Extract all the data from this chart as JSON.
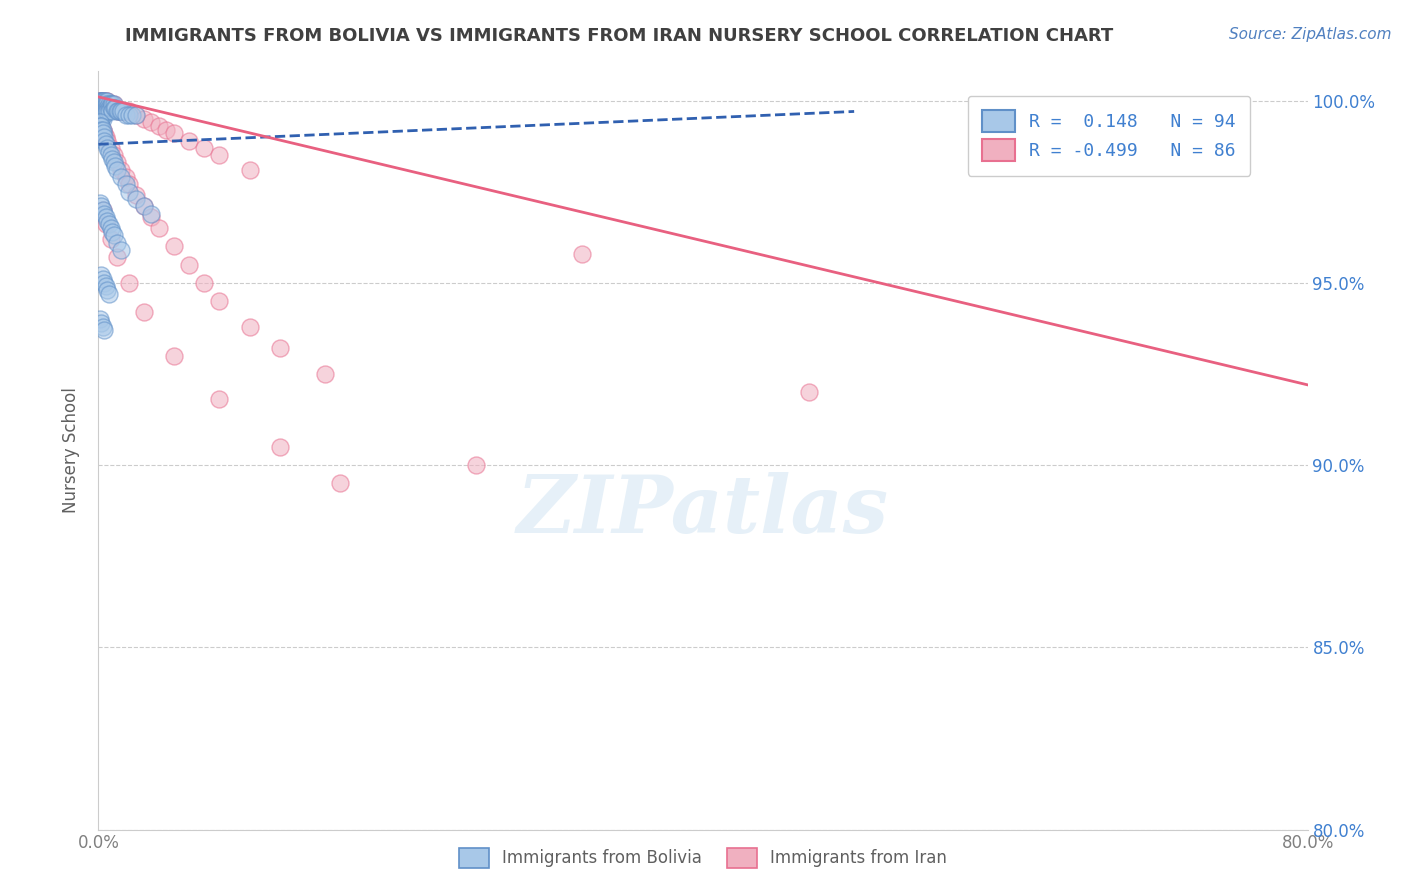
{
  "title": "IMMIGRANTS FROM BOLIVIA VS IMMIGRANTS FROM IRAN NURSERY SCHOOL CORRELATION CHART",
  "source": "Source: ZipAtlas.com",
  "ylabel": "Nursery School",
  "xmin": 0.0,
  "xmax": 0.8,
  "ymin": 0.8,
  "ymax": 1.008,
  "bolivia_R": 0.148,
  "bolivia_N": 94,
  "iran_R": -0.499,
  "iran_N": 86,
  "bolivia_color": "#a8c8e8",
  "iran_color": "#f0b0c0",
  "bolivia_edge_color": "#6090c8",
  "iran_edge_color": "#e87090",
  "bolivia_line_color": "#3060b0",
  "iran_line_color": "#e86080",
  "bolivia_scatter_x": [
    0.001,
    0.001,
    0.001,
    0.001,
    0.002,
    0.002,
    0.002,
    0.002,
    0.002,
    0.002,
    0.002,
    0.003,
    0.003,
    0.003,
    0.003,
    0.003,
    0.003,
    0.003,
    0.004,
    0.004,
    0.004,
    0.004,
    0.004,
    0.005,
    0.005,
    0.005,
    0.005,
    0.006,
    0.006,
    0.006,
    0.006,
    0.007,
    0.007,
    0.007,
    0.008,
    0.008,
    0.009,
    0.009,
    0.01,
    0.01,
    0.011,
    0.012,
    0.013,
    0.014,
    0.015,
    0.016,
    0.018,
    0.02,
    0.022,
    0.025,
    0.001,
    0.001,
    0.002,
    0.002,
    0.003,
    0.003,
    0.004,
    0.004,
    0.005,
    0.006,
    0.007,
    0.008,
    0.009,
    0.01,
    0.011,
    0.012,
    0.015,
    0.018,
    0.02,
    0.025,
    0.03,
    0.035,
    0.001,
    0.002,
    0.003,
    0.004,
    0.005,
    0.006,
    0.007,
    0.008,
    0.009,
    0.01,
    0.012,
    0.015,
    0.002,
    0.003,
    0.004,
    0.005,
    0.006,
    0.007,
    0.001,
    0.002,
    0.003,
    0.004
  ],
  "bolivia_scatter_y": [
    1.0,
    1.0,
    0.999,
    0.998,
    1.0,
    1.0,
    0.999,
    0.998,
    0.997,
    0.996,
    0.995,
    1.0,
    1.0,
    0.999,
    0.998,
    0.997,
    0.996,
    0.995,
    1.0,
    0.999,
    0.998,
    0.997,
    0.996,
    1.0,
    0.999,
    0.998,
    0.997,
    1.0,
    0.999,
    0.998,
    0.997,
    0.999,
    0.998,
    0.997,
    0.999,
    0.998,
    0.999,
    0.997,
    0.999,
    0.998,
    0.998,
    0.997,
    0.997,
    0.997,
    0.997,
    0.997,
    0.996,
    0.996,
    0.996,
    0.996,
    0.994,
    0.993,
    0.993,
    0.992,
    0.992,
    0.991,
    0.99,
    0.989,
    0.988,
    0.987,
    0.986,
    0.985,
    0.984,
    0.983,
    0.982,
    0.981,
    0.979,
    0.977,
    0.975,
    0.973,
    0.971,
    0.969,
    0.972,
    0.971,
    0.97,
    0.969,
    0.968,
    0.967,
    0.966,
    0.965,
    0.964,
    0.963,
    0.961,
    0.959,
    0.952,
    0.951,
    0.95,
    0.949,
    0.948,
    0.947,
    0.94,
    0.939,
    0.938,
    0.937
  ],
  "iran_scatter_x": [
    0.001,
    0.001,
    0.001,
    0.001,
    0.002,
    0.002,
    0.002,
    0.002,
    0.002,
    0.003,
    0.003,
    0.003,
    0.003,
    0.003,
    0.004,
    0.004,
    0.004,
    0.004,
    0.005,
    0.005,
    0.005,
    0.006,
    0.006,
    0.006,
    0.007,
    0.007,
    0.008,
    0.008,
    0.009,
    0.009,
    0.01,
    0.01,
    0.011,
    0.012,
    0.013,
    0.014,
    0.015,
    0.016,
    0.018,
    0.02,
    0.025,
    0.03,
    0.035,
    0.04,
    0.045,
    0.05,
    0.06,
    0.07,
    0.08,
    0.1,
    0.001,
    0.002,
    0.003,
    0.004,
    0.005,
    0.006,
    0.008,
    0.01,
    0.012,
    0.015,
    0.018,
    0.02,
    0.025,
    0.03,
    0.035,
    0.04,
    0.05,
    0.06,
    0.07,
    0.08,
    0.1,
    0.12,
    0.15,
    0.003,
    0.005,
    0.008,
    0.012,
    0.02,
    0.03,
    0.05,
    0.08,
    0.12,
    0.16,
    0.25,
    0.32,
    0.47
  ],
  "iran_scatter_y": [
    1.0,
    1.0,
    0.999,
    0.998,
    1.0,
    1.0,
    0.999,
    0.998,
    0.997,
    1.0,
    0.999,
    0.998,
    0.997,
    0.996,
    1.0,
    0.999,
    0.998,
    0.997,
    1.0,
    0.999,
    0.998,
    1.0,
    0.999,
    0.998,
    0.999,
    0.998,
    0.999,
    0.998,
    0.999,
    0.998,
    0.999,
    0.998,
    0.998,
    0.998,
    0.997,
    0.997,
    0.997,
    0.997,
    0.997,
    0.997,
    0.996,
    0.995,
    0.994,
    0.993,
    0.992,
    0.991,
    0.989,
    0.987,
    0.985,
    0.981,
    0.994,
    0.993,
    0.992,
    0.991,
    0.99,
    0.989,
    0.987,
    0.985,
    0.983,
    0.981,
    0.979,
    0.977,
    0.974,
    0.971,
    0.968,
    0.965,
    0.96,
    0.955,
    0.95,
    0.945,
    0.938,
    0.932,
    0.925,
    0.97,
    0.966,
    0.962,
    0.957,
    0.95,
    0.942,
    0.93,
    0.918,
    0.905,
    0.895,
    0.9,
    0.958,
    0.92
  ],
  "bolivia_trend_x0": 0.0,
  "bolivia_trend_x1": 0.5,
  "bolivia_trend_y0": 0.988,
  "bolivia_trend_y1": 0.997,
  "iran_trend_x0": 0.0,
  "iran_trend_x1": 0.8,
  "iran_trend_y0": 1.001,
  "iran_trend_y1": 0.922,
  "yticks": [
    0.8,
    0.85,
    0.9,
    0.95,
    1.0
  ],
  "ytick_labels": [
    "80.0%",
    "85.0%",
    "90.0%",
    "95.0%",
    "100.0%"
  ],
  "xticks": [
    0.0,
    0.1,
    0.2,
    0.3,
    0.4,
    0.5,
    0.6,
    0.7,
    0.8
  ],
  "xtick_labels": [
    "0.0%",
    "",
    "",
    "",
    "",
    "",
    "",
    "",
    "80.0%"
  ],
  "title_fontsize": 13,
  "title_color": "#404040",
  "axis_label_color": "#606060",
  "ytick_color": "#4080d0",
  "xtick_color": "#808080",
  "grid_color": "#cccccc",
  "source_color": "#5080c0",
  "watermark": "ZIPatlas",
  "legend_label_1": "R =  0.148   N = 94",
  "legend_label_2": "R = -0.499   N = 86"
}
